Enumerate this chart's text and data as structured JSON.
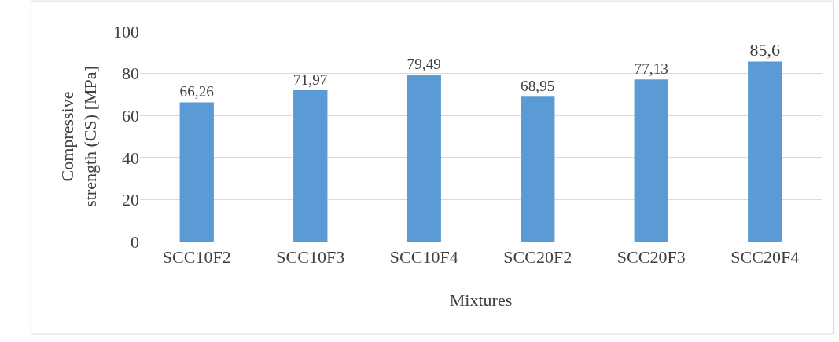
{
  "chart_data": {
    "type": "bar",
    "xlabel": "Mixtures",
    "ylabel": "Compressive strength (CS) [MPa]",
    "categories": [
      "SCC10F2",
      "SCC10F3",
      "SCC10F4",
      "SCC20F2",
      "SCC20F3",
      "SCC20F4"
    ],
    "values": [
      66.26,
      71.97,
      79.49,
      68.95,
      77.13,
      85.6
    ],
    "value_labels": [
      "66,26",
      "71,97",
      "79,49",
      "68,95",
      "77,13",
      "85,6"
    ],
    "color": "#5b9bd5",
    "ylim": [
      0,
      100
    ],
    "yticks": [
      0,
      20,
      40,
      60,
      80,
      100
    ],
    "grid": "y"
  }
}
